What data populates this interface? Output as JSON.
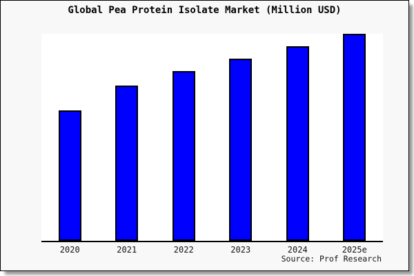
{
  "title": "Global Pea Protein Isolate Market (Million USD)",
  "source_note": "Source: Prof Research",
  "colors": {
    "bar_fill": "#0000ff",
    "bar_edge": "#000000",
    "plot_background": "#ffffff",
    "figure_background": "#f8f8f8",
    "frame_border": "#000000",
    "text": "#000000"
  },
  "chart_data": {
    "type": "bar",
    "title": "Global Pea Protein Isolate Market (Million USD)",
    "categories": [
      "2020",
      "2021",
      "2022",
      "2023",
      "2024",
      "2025e"
    ],
    "values": [
      63,
      75,
      82,
      88,
      94,
      100
    ],
    "values_unit": "relative index (no y-axis labels shown; bars scaled to max = 100)",
    "xlabel": "",
    "ylabel": "",
    "ylim": [
      0,
      100
    ],
    "grid": false,
    "legend": false,
    "y_axis_visible": false,
    "annotation": "Source: Prof Research"
  }
}
